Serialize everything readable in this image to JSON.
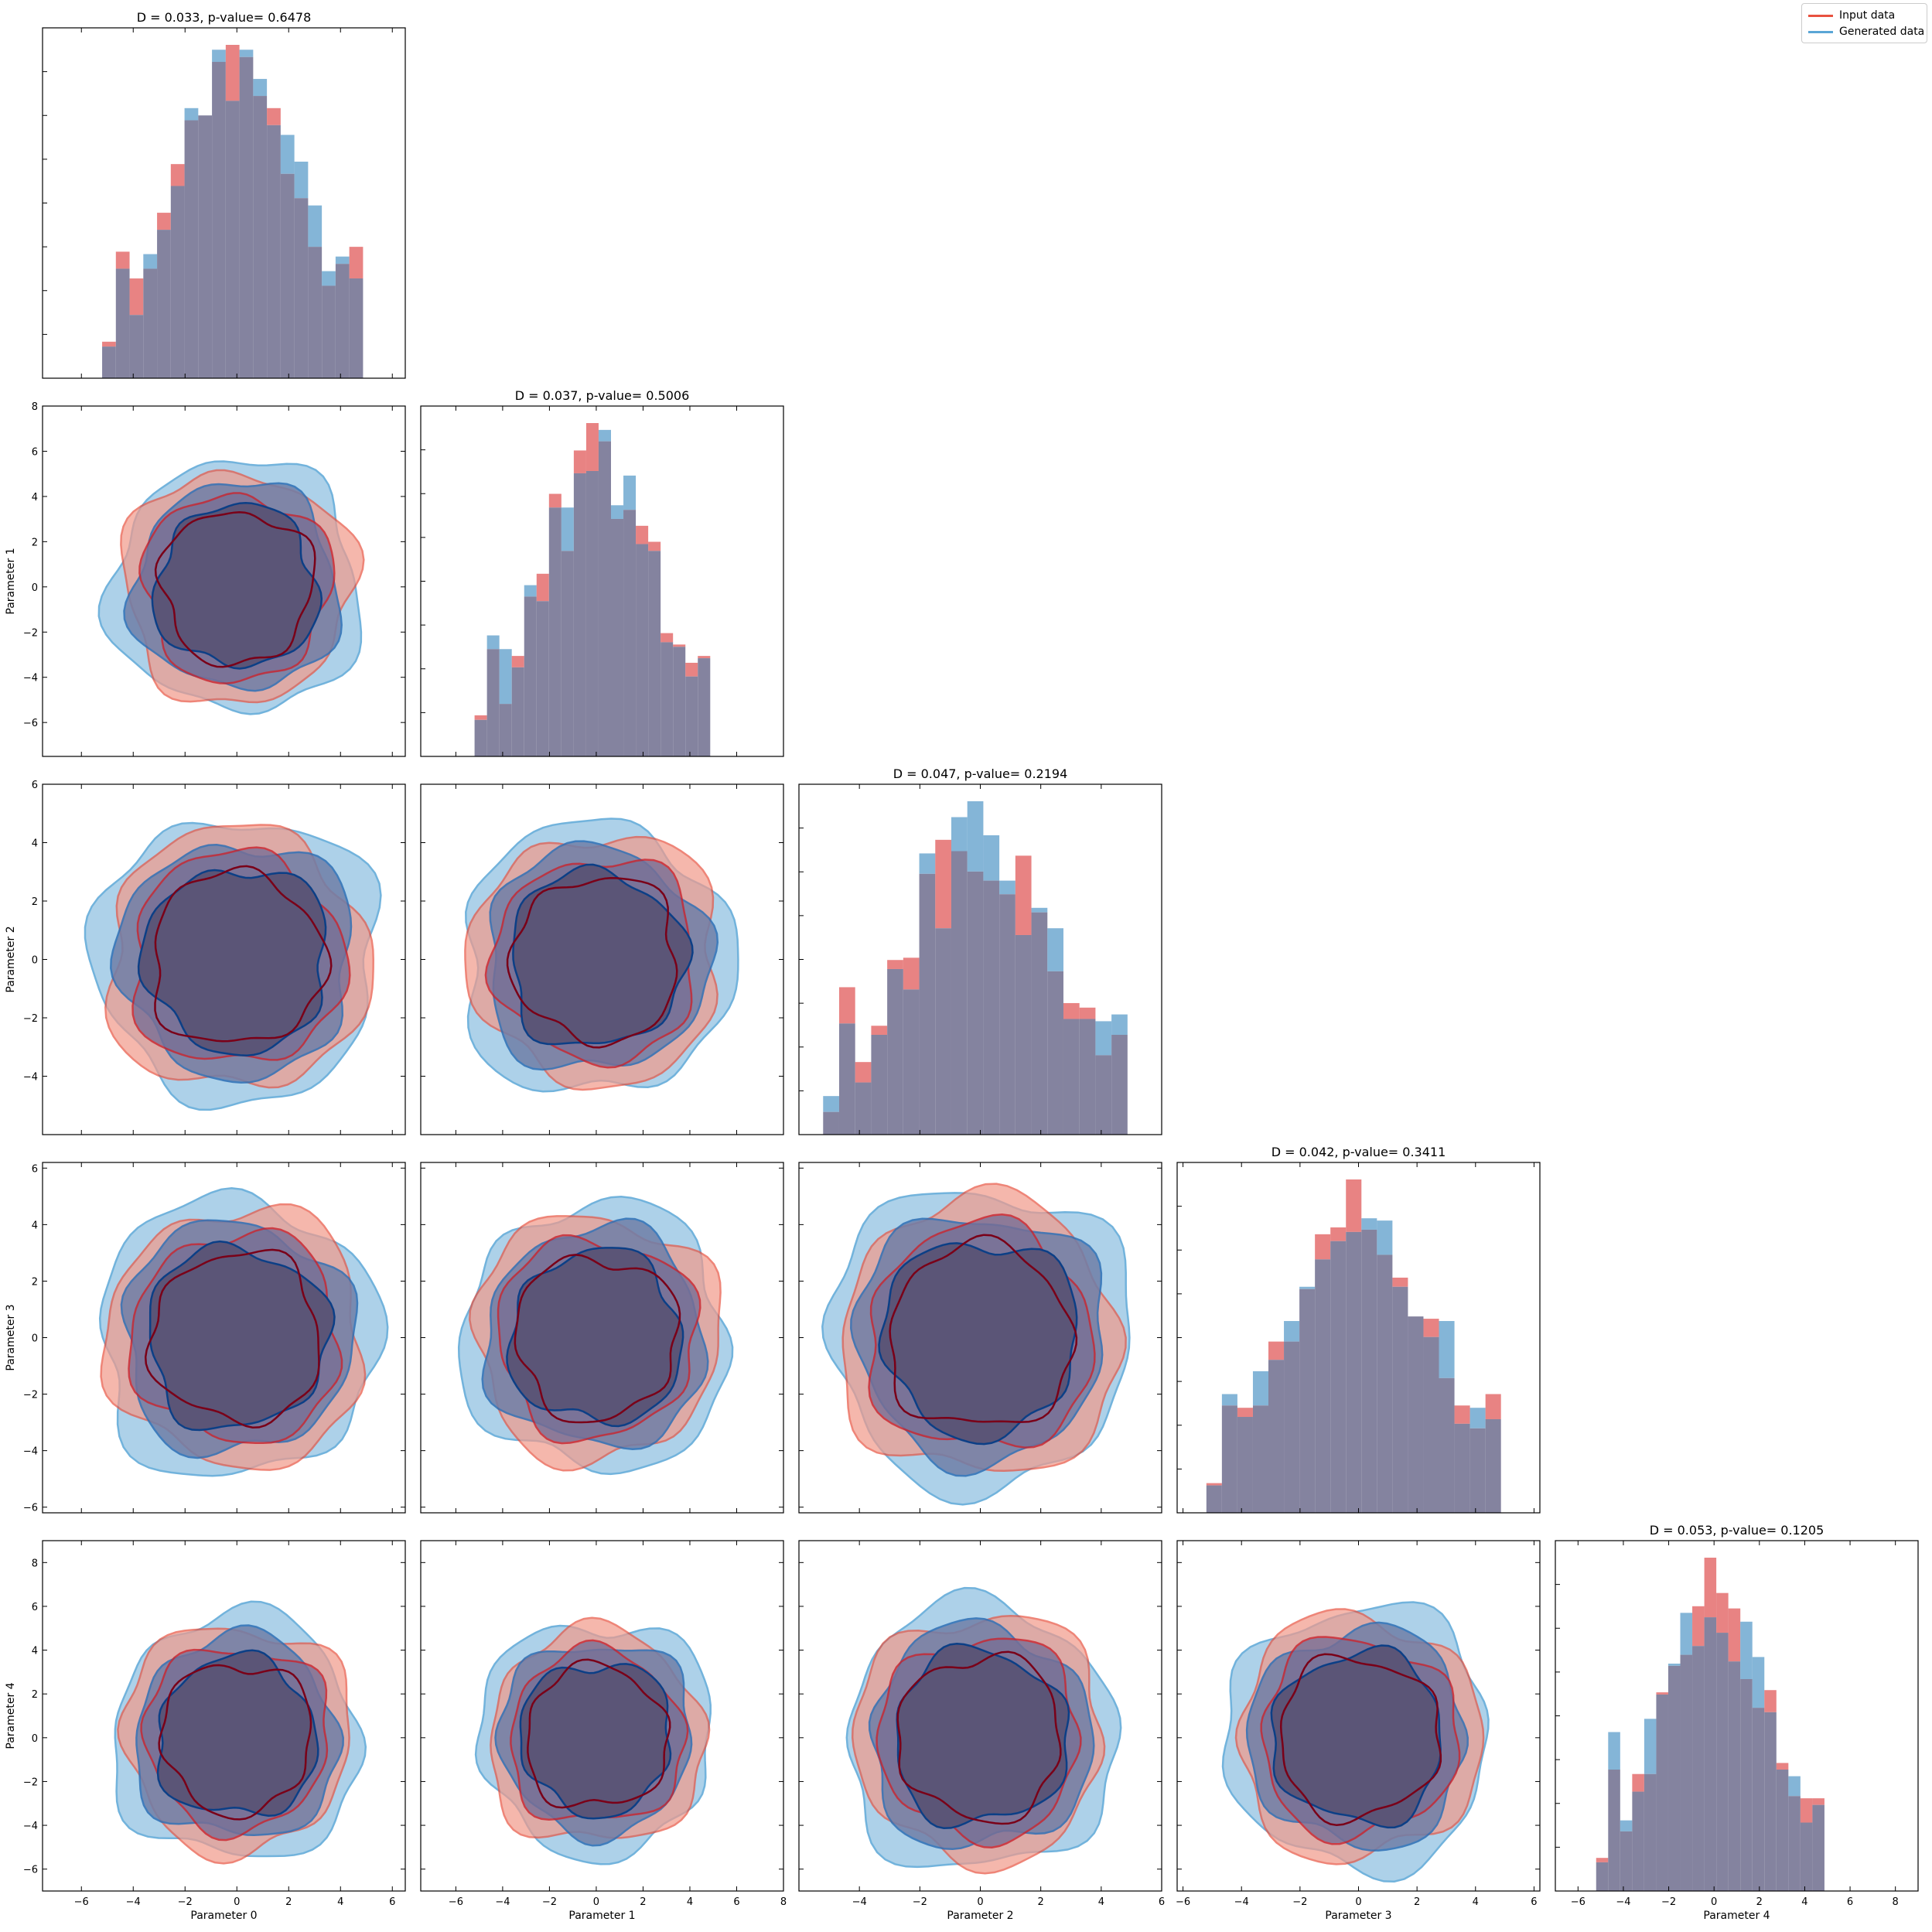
{
  "legend": {
    "input_label": "Input data",
    "generated_label": "Generated data",
    "input_color": "#e8523f",
    "generated_color": "#5aa6d6"
  },
  "colors": {
    "input_fill": "#e05a5a",
    "generated_fill": "#5b9cc9",
    "overlap_fill": "#84839f",
    "contour_dark_red": "#7a0018",
    "contour_dark_blue": "#0c3f86"
  },
  "chart_data": {
    "type": "corner",
    "parameters": [
      "Parameter 0",
      "Parameter 1",
      "Parameter 2",
      "Parameter 3",
      "Parameter 4"
    ],
    "grid": false,
    "legend_position": "top-right",
    "ranges": [
      [
        -7.5,
        6.5
      ],
      [
        -7.5,
        8.0
      ],
      [
        -6.0,
        6.0
      ],
      [
        -6.2,
        6.2
      ],
      [
        -7.0,
        9.0
      ]
    ],
    "ticks": [
      [
        -6,
        -4,
        -2,
        0,
        2,
        4,
        6
      ],
      [
        -6,
        -4,
        -2,
        0,
        2,
        4,
        6,
        8
      ],
      [
        -4,
        -2,
        0,
        2,
        4,
        6
      ],
      [
        -6,
        -4,
        -2,
        0,
        2,
        4,
        6
      ],
      [
        -6,
        -4,
        -2,
        0,
        2,
        4,
        6,
        8
      ]
    ],
    "histograms": [
      {
        "title": "D = 0.033, p-value= 0.6478",
        "param": 0
      },
      {
        "title": "D = 0.037, p-value= 0.5006",
        "param": 1
      },
      {
        "title": "D = 0.047, p-value= 0.2194",
        "param": 2
      },
      {
        "title": "D = 0.042, p-value= 0.3411",
        "param": 3
      },
      {
        "title": "D = 0.053, p-value= 0.1205",
        "param": 4
      }
    ],
    "series": [
      {
        "name": "Input data"
      },
      {
        "name": "Generated data"
      }
    ],
    "contour_radii": {
      "input": [
        4.7,
        3.8,
        3.1
      ],
      "generated": [
        5.1,
        4.2,
        3.3
      ]
    }
  }
}
